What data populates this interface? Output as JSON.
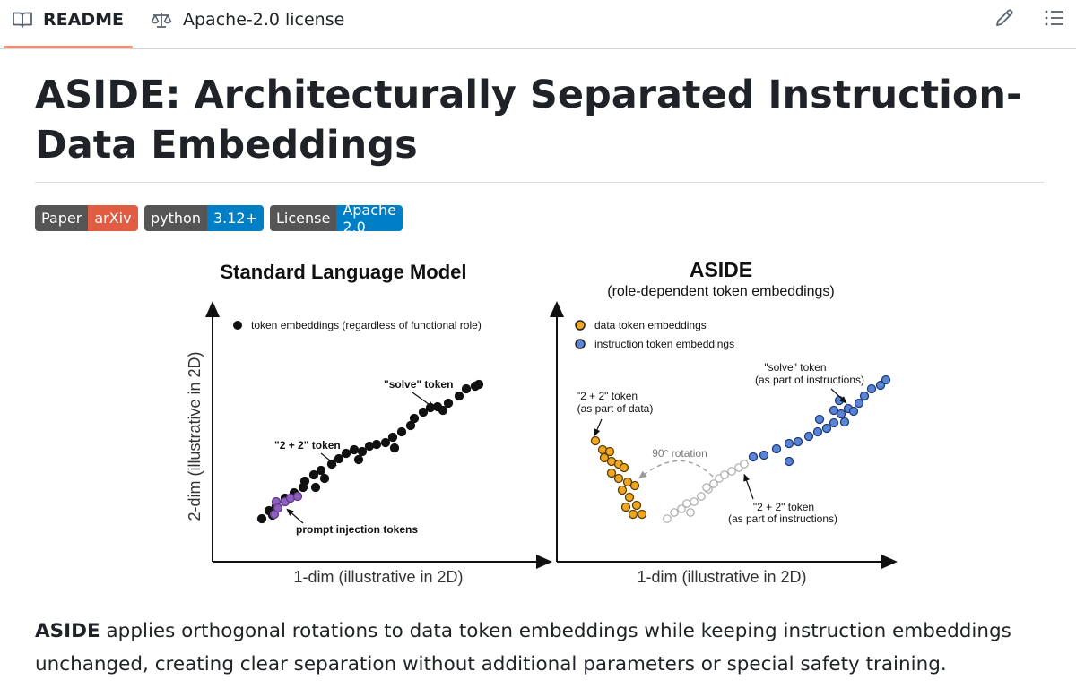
{
  "tabs": {
    "readme": "README",
    "license": "Apache-2.0 license"
  },
  "toolbar": {
    "edit_icon": "pencil-icon",
    "toc_icon": "list-unordered-icon"
  },
  "title": "ASIDE: Architecturally Separated Instruction-Data Embeddings",
  "badges": [
    {
      "label": "Paper",
      "message": "arXiv",
      "color": "#e05d44"
    },
    {
      "label": "python",
      "message": "3.12+",
      "color": "#007ec6"
    },
    {
      "label": "License",
      "message": "Apache 2.0",
      "color": "#007ec6"
    }
  ],
  "figure": {
    "left": {
      "title": "Standard Language Model",
      "legend": "token embeddings (regardless of functional role)",
      "xlabel": "1-dim (illustrative in 2D)",
      "ylabel": "2-dim (illustrative in 2D)",
      "ann_solve": "\"solve\" token",
      "ann_22": "\"2 + 2\" token",
      "ann_inject": "prompt injection tokens"
    },
    "right": {
      "title": "ASIDE",
      "subtitle": "(role-dependent token embeddings)",
      "legend_data": "data token embeddings",
      "legend_instr": "instruction token embeddings",
      "xlabel": "1-dim (illustrative in 2D)",
      "ann_solve_1": "\"solve\" token",
      "ann_solve_2": "(as part of instructions)",
      "ann_22d_1": "\"2 + 2\" token",
      "ann_22d_2": "(as part of data)",
      "ann_rot": "90° rotation",
      "ann_22i_1": "\"2 + 2\" token",
      "ann_22i_2": "(as part of instructions)"
    },
    "colors": {
      "black": "#111111",
      "purple": "#8e5fc0",
      "orange": "#f0a623",
      "blue": "#5a84d6",
      "gray": "#bbbbbb"
    }
  },
  "paragraph": {
    "strong": "ASIDE",
    "rest": " applies orthogonal rotations to data token embeddings while keeping instruction embeddings unchanged, creating clear separation without additional parameters or special safety training."
  }
}
